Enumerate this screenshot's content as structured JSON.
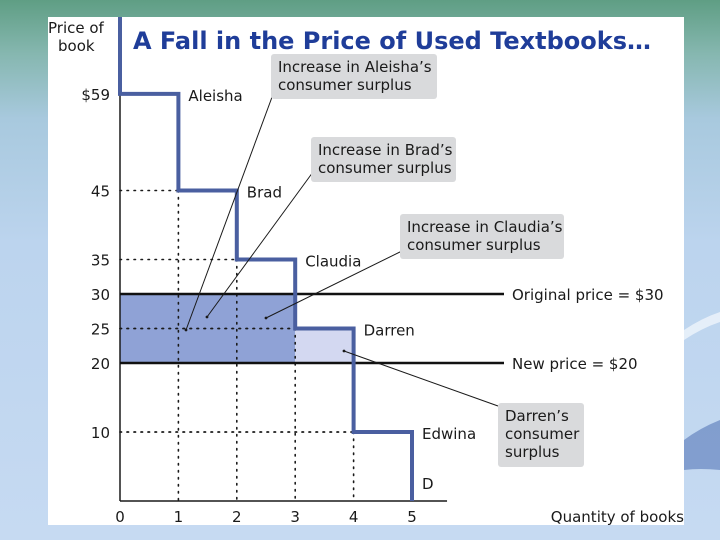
{
  "chart_data": {
    "type": "line",
    "title": "A Fall in the Price of Used Textbooks…",
    "ylabel_lines": [
      "Price of",
      "book"
    ],
    "xlabel": "Quantity of books",
    "xlim": [
      0,
      5.6
    ],
    "ylim": [
      0,
      62
    ],
    "x_ticks": [
      "0",
      "1",
      "2",
      "3",
      "4",
      "5"
    ],
    "y_ticks": [
      {
        "value": 59,
        "label": "$59"
      },
      {
        "value": 45,
        "label": "45"
      },
      {
        "value": 35,
        "label": "35"
      },
      {
        "value": 30,
        "label": "30"
      },
      {
        "value": 25,
        "label": "25"
      },
      {
        "value": 20,
        "label": "20"
      },
      {
        "value": 10,
        "label": "10"
      }
    ],
    "demand": {
      "name": "D",
      "color": "#4a5fa0",
      "steps": [
        {
          "buyer": "Aleisha",
          "quantity": 1,
          "willingness_to_pay": 59
        },
        {
          "buyer": "Brad",
          "quantity": 2,
          "willingness_to_pay": 45
        },
        {
          "buyer": "Claudia",
          "quantity": 3,
          "willingness_to_pay": 35
        },
        {
          "buyer": "Darren",
          "quantity": 4,
          "willingness_to_pay": 25
        },
        {
          "buyer": "Edwina",
          "quantity": 5,
          "willingness_to_pay": 10
        }
      ]
    },
    "price_lines": [
      {
        "name": "Original price = $30",
        "value": 30
      },
      {
        "name": "New price = $20",
        "value": 20
      }
    ],
    "shaded_regions": [
      {
        "description": "increase in surplus for initial buyers",
        "x_from": 0,
        "x_to": 3,
        "y_from": 20,
        "y_to": 30,
        "color": "#8fa2d6"
      },
      {
        "description": "Darren's consumer surplus",
        "x_from": 3,
        "x_to": 4,
        "y_from": 20,
        "y_to": 25,
        "color": "#d3d8f1"
      }
    ],
    "callouts": [
      {
        "lines": [
          "Increase in Aleisha’s",
          "consumer surplus"
        ]
      },
      {
        "lines": [
          "Increase in Brad’s",
          "consumer surplus"
        ]
      },
      {
        "lines": [
          "Increase in Claudia’s",
          "consumer surplus"
        ]
      },
      {
        "lines": [
          "Darren’s",
          "consumer",
          "surplus"
        ]
      }
    ],
    "grid": "dotted guides at each step"
  }
}
